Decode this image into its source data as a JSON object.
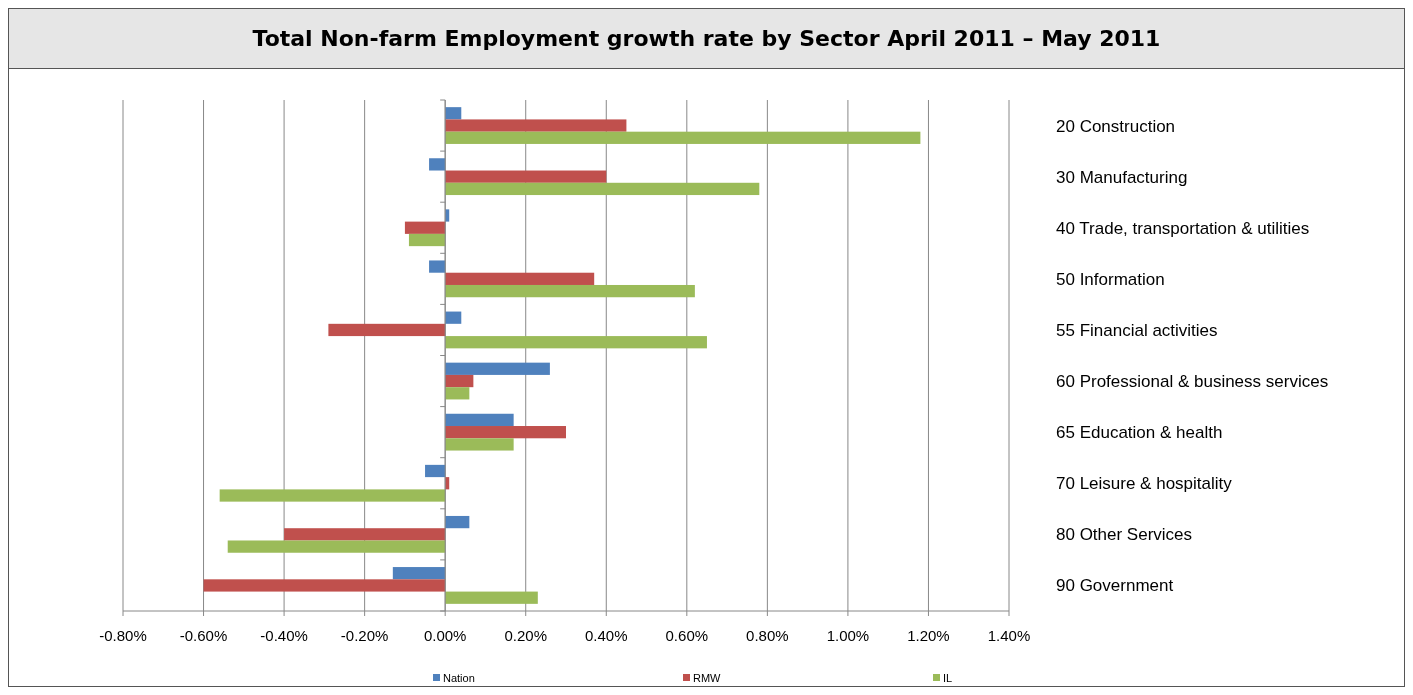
{
  "chart_data": {
    "type": "bar",
    "orientation": "horizontal",
    "title": "Total Non-farm Employment growth rate by Sector April 2011 – May 2011",
    "categories": [
      "20 Construction",
      "30 Manufacturing",
      "40 Trade, transportation & utilities",
      "50 Information",
      "55 Financial activities",
      "60 Professional & business services",
      "65 Education & health",
      "70 Leisure & hospitality",
      "80 Other Services",
      "90 Government"
    ],
    "series": [
      {
        "name": "Nation",
        "color": "#4f81bd",
        "values": [
          0.04,
          -0.04,
          0.01,
          -0.04,
          0.04,
          0.26,
          0.17,
          -0.05,
          0.06,
          -0.13
        ]
      },
      {
        "name": "RMW",
        "color": "#c0504d",
        "values": [
          0.45,
          0.4,
          -0.1,
          0.37,
          -0.29,
          0.07,
          0.3,
          0.01,
          -0.4,
          -0.6
        ]
      },
      {
        "name": "IL",
        "color": "#9bbb59",
        "values": [
          1.18,
          0.78,
          -0.09,
          0.62,
          0.65,
          0.06,
          0.17,
          -0.56,
          -0.54,
          0.23
        ]
      }
    ],
    "xlim": [
      -0.8,
      1.4
    ],
    "xticks": [
      {
        "value": -0.8,
        "label": "-0.80%"
      },
      {
        "value": -0.6,
        "label": "-0.60%"
      },
      {
        "value": -0.4,
        "label": "-0.40%"
      },
      {
        "value": -0.2,
        "label": "-0.20%"
      },
      {
        "value": 0,
        "label": "0.00%"
      },
      {
        "value": 0.2,
        "label": "0.20%"
      },
      {
        "value": 0.4,
        "label": "0.40%"
      },
      {
        "value": 0.6,
        "label": "0.60%"
      },
      {
        "value": 0.8,
        "label": "0.80%"
      },
      {
        "value": 1.0,
        "label": "1.00%"
      },
      {
        "value": 1.2,
        "label": "1.20%"
      },
      {
        "value": 1.4,
        "label": "1.40%"
      }
    ],
    "grid": "x",
    "legend": "bottom"
  }
}
